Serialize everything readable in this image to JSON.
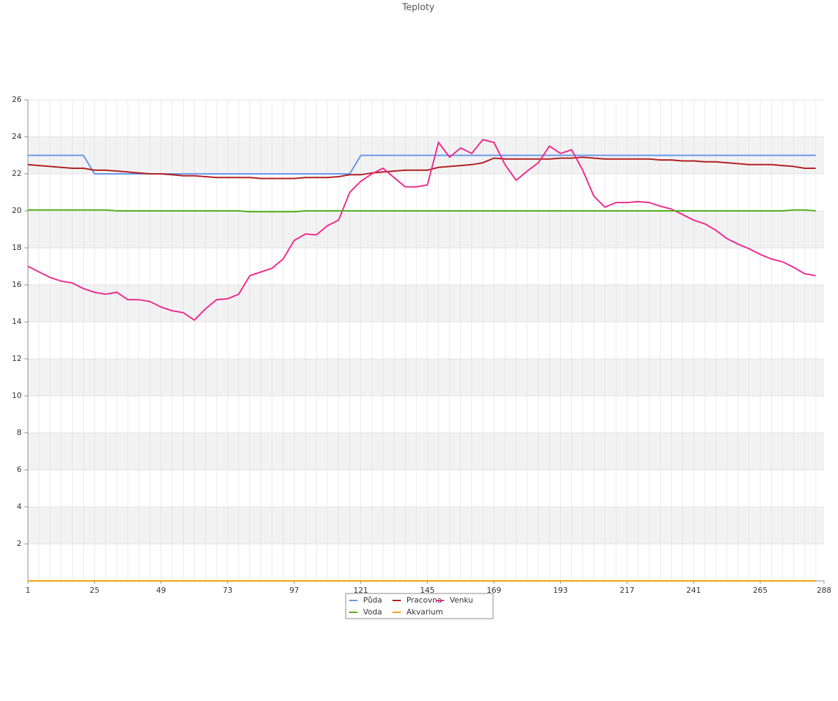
{
  "chart_data": {
    "type": "line",
    "title": "Teploty",
    "x": [
      1,
      5,
      9,
      13,
      17,
      21,
      25,
      29,
      33,
      37,
      41,
      45,
      49,
      53,
      57,
      61,
      65,
      69,
      73,
      77,
      81,
      85,
      89,
      93,
      97,
      101,
      105,
      109,
      113,
      117,
      121,
      125,
      129,
      133,
      137,
      141,
      145,
      149,
      153,
      157,
      161,
      165,
      169,
      173,
      177,
      181,
      185,
      189,
      193,
      197,
      201,
      205,
      209,
      213,
      217,
      221,
      225,
      229,
      233,
      237,
      241,
      245,
      249,
      253,
      257,
      261,
      265,
      269,
      273,
      277,
      281,
      285
    ],
    "xlim": [
      1,
      288
    ],
    "xticks": [
      1,
      25,
      49,
      73,
      97,
      121,
      145,
      169,
      193,
      217,
      241,
      265,
      288
    ],
    "ylim": [
      0,
      26
    ],
    "yticks": [
      2,
      4,
      6,
      8,
      10,
      12,
      14,
      16,
      18,
      20,
      22,
      24,
      26
    ],
    "grid": true,
    "series": [
      {
        "name": "Půda",
        "color": "#6495ed",
        "values": [
          23,
          23,
          23,
          23,
          23,
          23,
          22,
          22,
          22,
          22,
          22,
          22,
          22,
          22,
          22,
          22,
          22,
          22,
          22,
          22,
          22,
          22,
          22,
          22,
          22,
          22,
          22,
          22,
          22,
          22,
          23,
          23,
          23,
          23,
          23,
          23,
          23,
          23,
          23,
          23,
          23,
          23,
          23,
          23,
          23,
          23,
          23,
          23,
          23,
          23,
          23,
          23,
          23,
          23,
          23,
          23,
          23,
          23,
          23,
          23,
          23,
          23,
          23,
          23,
          23,
          23,
          23,
          23,
          23,
          23,
          23,
          23
        ]
      },
      {
        "name": "Pracovna",
        "color": "#b01c1c",
        "values": [
          22.5,
          22.45,
          22.4,
          22.35,
          22.3,
          22.3,
          22.2,
          22.2,
          22.15,
          22.1,
          22.05,
          22.0,
          22.0,
          21.95,
          21.9,
          21.9,
          21.85,
          21.8,
          21.8,
          21.8,
          21.8,
          21.75,
          21.75,
          21.75,
          21.75,
          21.8,
          21.8,
          21.8,
          21.85,
          21.95,
          21.95,
          22.05,
          22.1,
          22.15,
          22.2,
          22.2,
          22.2,
          22.35,
          22.4,
          22.45,
          22.5,
          22.6,
          22.85,
          22.8,
          22.8,
          22.8,
          22.8,
          22.8,
          22.85,
          22.85,
          22.9,
          22.85,
          22.8,
          22.8,
          22.8,
          22.8,
          22.8,
          22.75,
          22.75,
          22.7,
          22.7,
          22.65,
          22.65,
          22.6,
          22.55,
          22.5,
          22.5,
          22.5,
          22.45,
          22.4,
          22.3,
          22.3
        ]
      },
      {
        "name": "Venku",
        "color": "#f0288c",
        "values": [
          17.0,
          16.7,
          16.4,
          16.2,
          16.1,
          15.8,
          15.6,
          15.5,
          15.6,
          15.2,
          15.2,
          15.1,
          14.8,
          14.6,
          14.5,
          14.1,
          14.7,
          15.2,
          15.25,
          15.5,
          16.5,
          16.7,
          16.9,
          17.4,
          18.4,
          18.75,
          18.7,
          19.2,
          19.5,
          21.0,
          21.6,
          22.0,
          22.3,
          21.8,
          21.3,
          21.3,
          21.4,
          23.7,
          22.9,
          23.4,
          23.1,
          23.85,
          23.7,
          22.5,
          21.65,
          22.15,
          22.6,
          23.5,
          23.1,
          23.3,
          22.2,
          20.8,
          20.2,
          20.45,
          20.45,
          20.5,
          20.45,
          20.25,
          20.1,
          19.8,
          19.5,
          19.3,
          18.95,
          18.5,
          18.2,
          17.95,
          17.65,
          17.4,
          17.25,
          16.95,
          16.6,
          16.5
        ]
      },
      {
        "name": "Voda",
        "color": "#4cae17",
        "values": [
          20.05,
          20.05,
          20.05,
          20.05,
          20.05,
          20.05,
          20.05,
          20.05,
          20.0,
          20.0,
          20.0,
          20.0,
          20.0,
          20.0,
          20.0,
          20.0,
          20.0,
          20.0,
          20.0,
          20.0,
          19.95,
          19.95,
          19.95,
          19.95,
          19.95,
          20.0,
          20.0,
          20.0,
          20.0,
          20.0,
          20.0,
          20.0,
          20.0,
          20.0,
          20.0,
          20.0,
          20.0,
          20.0,
          20.0,
          20.0,
          20.0,
          20.0,
          20.0,
          20.0,
          20.0,
          20.0,
          20.0,
          20.0,
          20.0,
          20.0,
          20.0,
          20.0,
          20.0,
          20.0,
          20.0,
          20.0,
          20.0,
          20.0,
          20.0,
          20.0,
          20.0,
          20.0,
          20.0,
          20.0,
          20.0,
          20.0,
          20.0,
          20.0,
          20.0,
          20.05,
          20.05,
          20.0
        ]
      },
      {
        "name": "Akvarium",
        "color": "#f0a30a",
        "values": [
          0,
          0,
          0,
          0,
          0,
          0,
          0,
          0,
          0,
          0,
          0,
          0,
          0,
          0,
          0,
          0,
          0,
          0,
          0,
          0,
          0,
          0,
          0,
          0,
          0,
          0,
          0,
          0,
          0,
          0,
          0,
          0,
          0,
          0,
          0,
          0,
          0,
          0,
          0,
          0,
          0,
          0,
          0,
          0,
          0,
          0,
          0,
          0,
          0,
          0,
          0,
          0,
          0,
          0,
          0,
          0,
          0,
          0,
          0,
          0,
          0,
          0,
          0,
          0,
          0,
          0,
          0,
          0,
          0,
          0,
          0,
          0
        ]
      }
    ]
  }
}
